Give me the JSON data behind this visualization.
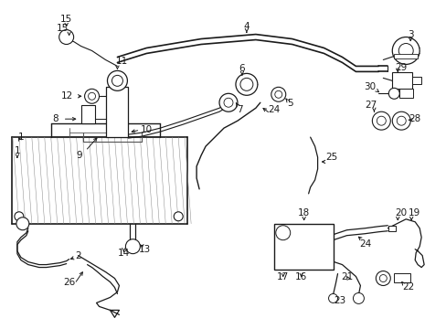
{
  "bg_color": "#ffffff",
  "line_color": "#1a1a1a",
  "fig_width": 4.89,
  "fig_height": 3.6,
  "dpi": 100,
  "lw": 1.0,
  "font_size": 7.5
}
